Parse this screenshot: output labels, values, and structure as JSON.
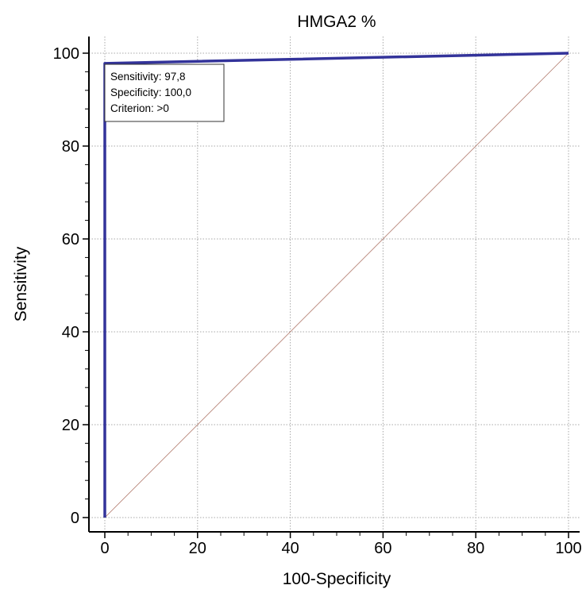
{
  "colors": {
    "roc_line": "#33339a",
    "diagonal": "#b0786a",
    "grid": "#a8a8a8",
    "axis": "#000000"
  },
  "chart_data": {
    "type": "line",
    "title": "HMGA2 %",
    "xlabel": "100-Specificity",
    "ylabel": "Sensitivity",
    "xlim": [
      0,
      100
    ],
    "ylim": [
      0,
      100
    ],
    "xticks": [
      0,
      20,
      40,
      60,
      80,
      100
    ],
    "yticks": [
      0,
      20,
      40,
      60,
      80,
      100
    ],
    "grid": true,
    "series": [
      {
        "role": "roc_curve",
        "x": [
          0,
          0,
          100
        ],
        "y": [
          0,
          97.8,
          100
        ]
      },
      {
        "role": "reference_diagonal",
        "x": [
          0,
          100
        ],
        "y": [
          0,
          100
        ]
      }
    ],
    "annotation": {
      "lines": [
        "Sensitivity: 97,8",
        "Specificity: 100,0",
        "Criterion: >0"
      ],
      "placement": "top-left"
    }
  }
}
